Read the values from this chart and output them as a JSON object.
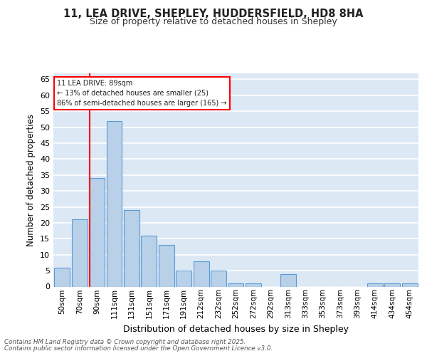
{
  "title_line1": "11, LEA DRIVE, SHEPLEY, HUDDERSFIELD, HD8 8HA",
  "title_line2": "Size of property relative to detached houses in Shepley",
  "xlabel": "Distribution of detached houses by size in Shepley",
  "ylabel": "Number of detached properties",
  "categories": [
    "50sqm",
    "70sqm",
    "90sqm",
    "111sqm",
    "131sqm",
    "151sqm",
    "171sqm",
    "191sqm",
    "212sqm",
    "232sqm",
    "252sqm",
    "272sqm",
    "292sqm",
    "313sqm",
    "333sqm",
    "353sqm",
    "373sqm",
    "393sqm",
    "414sqm",
    "434sqm",
    "454sqm"
  ],
  "values": [
    6,
    21,
    34,
    52,
    24,
    16,
    13,
    5,
    8,
    5,
    1,
    1,
    0,
    4,
    0,
    0,
    0,
    0,
    1,
    1,
    1
  ],
  "bar_color": "#b8d0e8",
  "bar_edge_color": "#5b9bd5",
  "background_color": "#dde8f5",
  "grid_color": "#ffffff",
  "annotation_text": "11 LEA DRIVE: 89sqm\n← 13% of detached houses are smaller (25)\n86% of semi-detached houses are larger (165) →",
  "footer_line1": "Contains HM Land Registry data © Crown copyright and database right 2025.",
  "footer_line2": "Contains public sector information licensed under the Open Government Licence v3.0.",
  "ylim": [
    0,
    67
  ],
  "yticks": [
    0,
    5,
    10,
    15,
    20,
    25,
    30,
    35,
    40,
    45,
    50,
    55,
    60,
    65
  ],
  "red_line_index": 1.58
}
